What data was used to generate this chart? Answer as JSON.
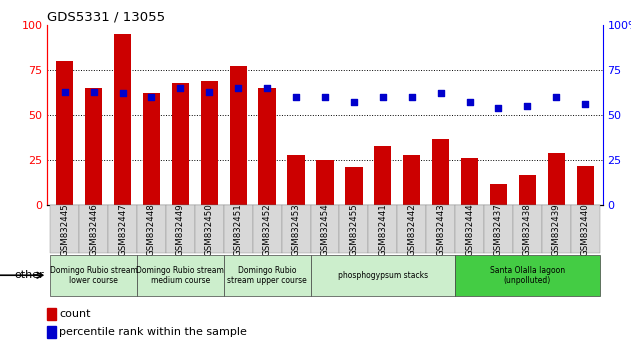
{
  "title": "GDS5331 / 13055",
  "samples": [
    "GSM832445",
    "GSM832446",
    "GSM832447",
    "GSM832448",
    "GSM832449",
    "GSM832450",
    "GSM832451",
    "GSM832452",
    "GSM832453",
    "GSM832454",
    "GSM832455",
    "GSM832441",
    "GSM832442",
    "GSM832443",
    "GSM832444",
    "GSM832437",
    "GSM832438",
    "GSM832439",
    "GSM832440"
  ],
  "counts": [
    80,
    65,
    95,
    62,
    68,
    69,
    77,
    65,
    28,
    25,
    21,
    33,
    28,
    37,
    26,
    12,
    17,
    29,
    22
  ],
  "percentiles": [
    63,
    63,
    62,
    60,
    65,
    63,
    65,
    65,
    60,
    60,
    57,
    60,
    60,
    62,
    57,
    54,
    55,
    60,
    56
  ],
  "bar_color": "#cc0000",
  "dot_color": "#0000cc",
  "groups": [
    {
      "label": "Domingo Rubio stream\nlower course",
      "start": 0,
      "end": 3,
      "color": "#cceecc"
    },
    {
      "label": "Domingo Rubio stream\nmedium course",
      "start": 3,
      "end": 6,
      "color": "#cceecc"
    },
    {
      "label": "Domingo Rubio\nstream upper course",
      "start": 6,
      "end": 9,
      "color": "#cceecc"
    },
    {
      "label": "phosphogypsum stacks",
      "start": 9,
      "end": 14,
      "color": "#cceecc"
    },
    {
      "label": "Santa Olalla lagoon\n(unpolluted)",
      "start": 14,
      "end": 19,
      "color": "#44cc44"
    }
  ],
  "ylim": [
    0,
    100
  ],
  "yticks": [
    0,
    25,
    50,
    75,
    100
  ],
  "legend_count_label": "count",
  "legend_pct_label": "percentile rank within the sample"
}
